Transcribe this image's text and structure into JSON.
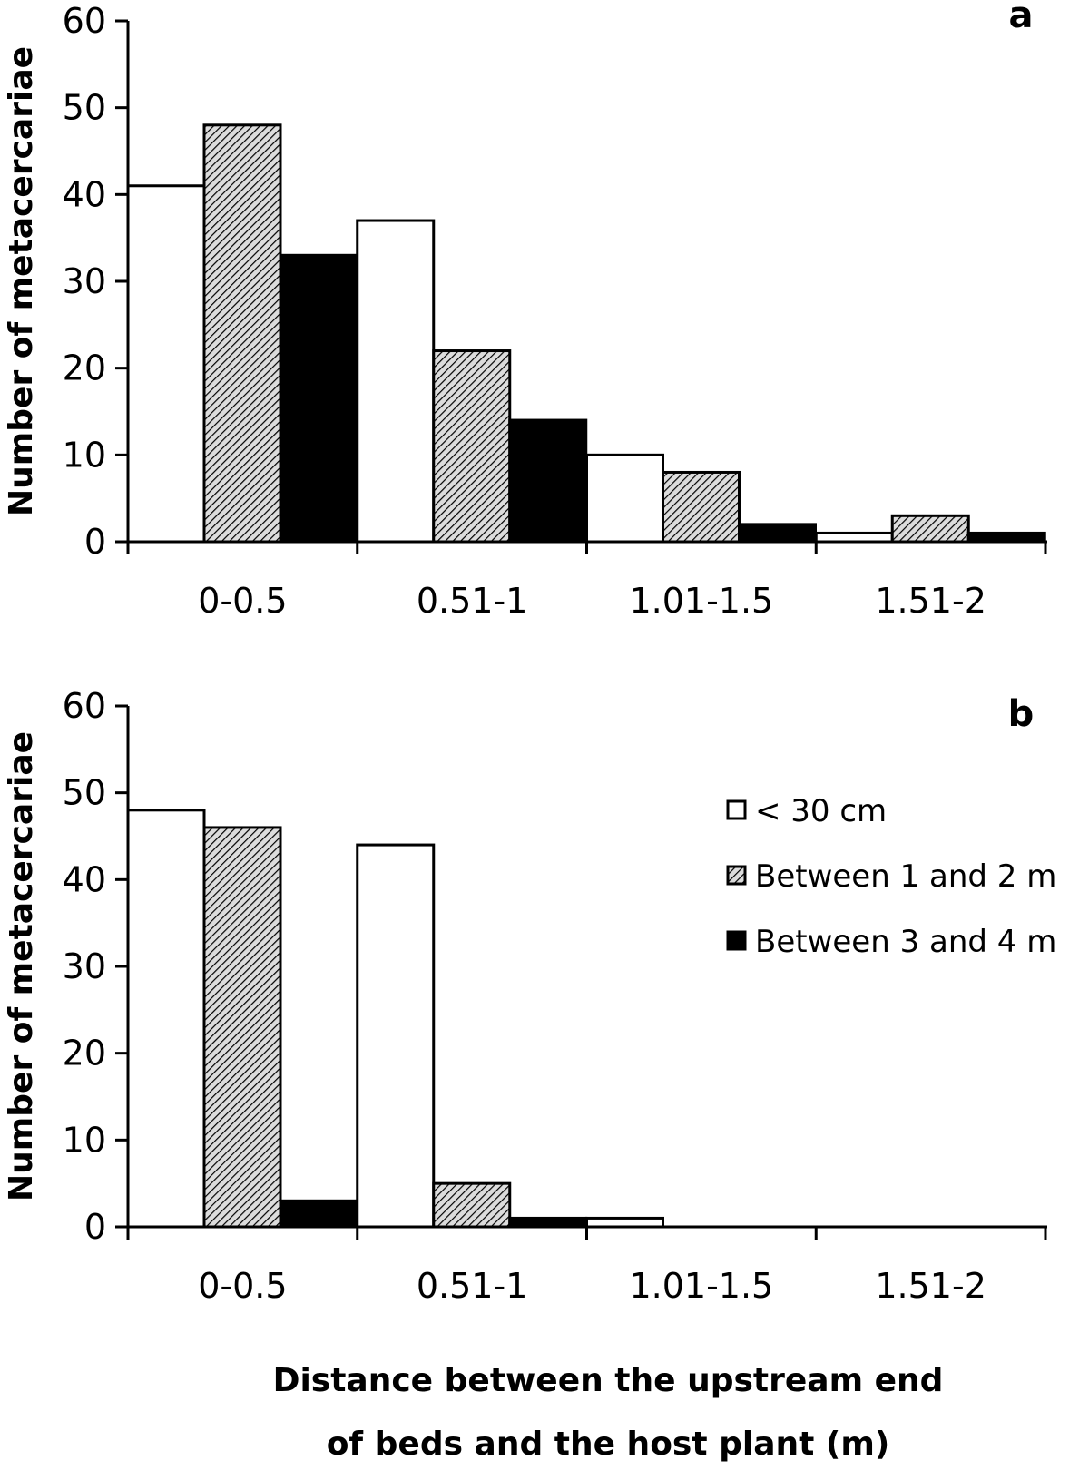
{
  "chart_data": [
    {
      "type": "bar",
      "panel": "a",
      "ylabel": "Number of metacercariae",
      "ylim": [
        0,
        60
      ],
      "yticks": [
        0,
        10,
        20,
        30,
        40,
        50,
        60
      ],
      "categories": [
        "0-0.5",
        "0.51-1",
        "1.01-1.5",
        "1.51-2"
      ],
      "series": [
        {
          "name": "< 30 cm",
          "values": [
            41,
            37,
            10,
            1
          ]
        },
        {
          "name": "Between 1 and 2 m",
          "values": [
            48,
            22,
            8,
            3
          ]
        },
        {
          "name": "Between 3 and 4 m",
          "values": [
            33,
            14,
            2,
            1
          ]
        }
      ]
    },
    {
      "type": "bar",
      "panel": "b",
      "ylabel": "Number of metacercariae",
      "xlabel_line1": "Distance between the upstream end",
      "xlabel_line2": "of beds and the host plant (m)",
      "ylim": [
        0,
        60
      ],
      "yticks": [
        0,
        10,
        20,
        30,
        40,
        50,
        60
      ],
      "categories": [
        "0-0.5",
        "0.51-1",
        "1.01-1.5",
        "1.51-2"
      ],
      "series": [
        {
          "name": "< 30 cm",
          "values": [
            48,
            44,
            1,
            0
          ]
        },
        {
          "name": "Between 1 and 2 m",
          "values": [
            46,
            5,
            0,
            0
          ]
        },
        {
          "name": "Between 3 and 4 m",
          "values": [
            3,
            1,
            0,
            0
          ]
        }
      ],
      "legend": {
        "placement": "top-right",
        "items": [
          {
            "label": "< 30 cm",
            "style": "white"
          },
          {
            "label": "Between 1 and 2 m",
            "style": "hatched"
          },
          {
            "label": "Between 3 and 4 m",
            "style": "black"
          }
        ]
      }
    }
  ],
  "colors": {
    "series1": "#ffffff",
    "series3": "#000000",
    "stroke": "#000000",
    "hatch_bg": "#d8d8d8"
  }
}
